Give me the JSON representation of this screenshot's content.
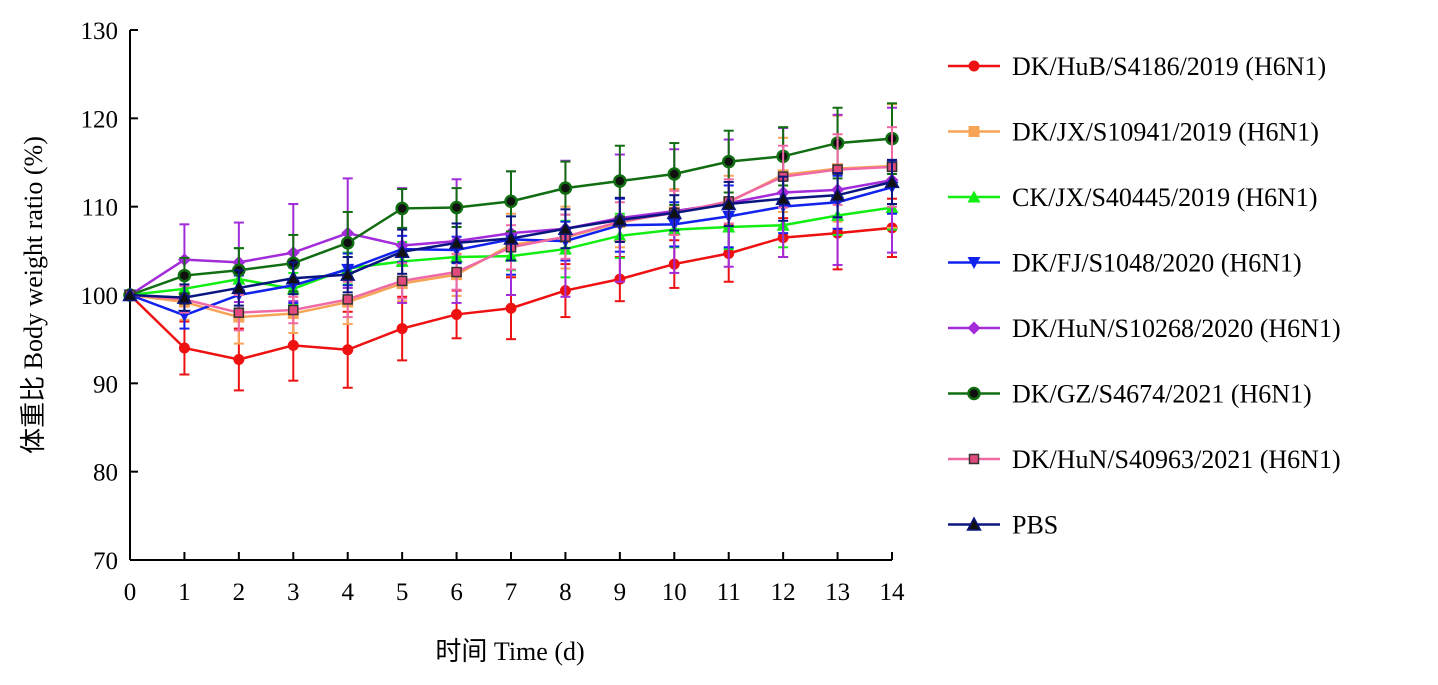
{
  "chart_data": {
    "type": "line",
    "xlabel": "时间 Time (d)",
    "ylabel": "体重比 Body weight ratio (%)",
    "xlim": [
      0,
      14
    ],
    "ylim": [
      70,
      130
    ],
    "x_ticks": [
      "0",
      "1",
      "2",
      "3",
      "4",
      "5",
      "6",
      "7",
      "8",
      "9",
      "10",
      "11",
      "12",
      "13",
      "14"
    ],
    "y_ticks": [
      "70",
      "80",
      "90",
      "100",
      "110",
      "120",
      "130"
    ],
    "grid": false,
    "legend_position": "right",
    "x": [
      0,
      1,
      2,
      3,
      4,
      5,
      6,
      7,
      8,
      9,
      10,
      11,
      12,
      13,
      14
    ],
    "series": [
      {
        "name": "DK/HuB/S4186/2019 (H6N1)",
        "color": "#ee1111",
        "marker": "circle",
        "values": [
          100,
          94,
          92.7,
          94.3,
          93.8,
          96.2,
          97.8,
          98.5,
          100.5,
          101.8,
          103.5,
          104.7,
          106.5,
          107,
          107.6
        ],
        "errors": [
          0,
          3,
          3.5,
          4,
          4.3,
          3.6,
          2.7,
          3.5,
          3,
          2.5,
          2.7,
          3.2,
          2.2,
          4.1,
          3.3
        ]
      },
      {
        "name": "DK/JX/S10941/2019 (H6N1)",
        "color": "#f7a456",
        "marker": "square",
        "values": [
          100,
          99.2,
          97.5,
          97.9,
          99.2,
          101.3,
          102.3,
          105.7,
          106.5,
          108.2,
          109.4,
          110.5,
          113.6,
          114.3,
          114.6
        ],
        "errors": [
          0,
          2,
          3,
          2.2,
          2.5,
          2,
          2.4,
          3.5,
          3.5,
          2.8,
          2.6,
          3,
          4.2,
          6,
          7
        ]
      },
      {
        "name": "CK/JX/S40445/2019 (H6N1)",
        "color": "#11ee11",
        "marker": "triangle-up",
        "values": [
          100,
          100.7,
          101.8,
          100.7,
          103,
          103.8,
          104.3,
          104.4,
          105.2,
          106.7,
          107.4,
          107.7,
          107.9,
          109,
          109.9
        ],
        "errors": [
          0,
          1.5,
          3.5,
          1.8,
          1.8,
          2.2,
          1.6,
          1.6,
          3.2,
          2.5,
          2,
          2.5,
          2.5,
          2.2,
          2.5
        ]
      },
      {
        "name": "DK/FJ/S1048/2020 (H6N1)",
        "color": "#1122ee",
        "marker": "triangle-down",
        "values": [
          100,
          97.7,
          100,
          101.1,
          102.9,
          105.2,
          105.1,
          106.3,
          106.1,
          107.9,
          108,
          108.9,
          110,
          110.5,
          112.2
        ],
        "errors": [
          0,
          1.5,
          2.2,
          2,
          1.8,
          1.5,
          1.5,
          4,
          2.2,
          3,
          2.5,
          3.5,
          3,
          3,
          3
        ]
      },
      {
        "name": "DK/HuN/S10268/2020 (H6N1)",
        "color": "#a32bd9",
        "marker": "diamond",
        "values": [
          100,
          104,
          103.7,
          104.8,
          107,
          105.6,
          106.1,
          107,
          107.5,
          108.7,
          109.5,
          110.4,
          111.6,
          111.9,
          113
        ],
        "errors": [
          0,
          4,
          4.5,
          5.5,
          6.2,
          6.5,
          7,
          7,
          7.7,
          7.2,
          7,
          7.2,
          7.3,
          8.5,
          8.2
        ]
      },
      {
        "name": "DK/GZ/S4674/2021 (H6N1)",
        "color": "#116d11",
        "marker": "circle-dark",
        "values": [
          100,
          102.2,
          102.8,
          103.6,
          105.9,
          109.8,
          109.9,
          110.6,
          112.1,
          112.9,
          113.7,
          115.1,
          115.7,
          117.2,
          117.7
        ],
        "errors": [
          0,
          2,
          2.5,
          3.2,
          3.5,
          2.2,
          2.2,
          3.4,
          3,
          4,
          3.5,
          3.5,
          3.3,
          4,
          4
        ]
      },
      {
        "name": "DK/HuN/S40963/2021 (H6N1)",
        "color": "#ef6aa5",
        "marker": "square-open",
        "values": [
          100,
          99.5,
          98,
          98.3,
          99.5,
          101.6,
          102.6,
          105.4,
          106.6,
          108.3,
          109.3,
          110.6,
          113.4,
          114.2,
          114.5
        ],
        "errors": [
          0,
          1.5,
          2,
          1.5,
          2,
          2,
          2,
          2.5,
          2.5,
          2.2,
          2.5,
          2.5,
          3.5,
          4,
          4.5
        ]
      },
      {
        "name": "PBS",
        "color": "#0a1680",
        "marker": "triangle-up-dark",
        "values": [
          100,
          99.7,
          100.8,
          101.9,
          102.3,
          104.9,
          105.9,
          106.4,
          107.5,
          108.5,
          109.3,
          110.3,
          110.9,
          111.3,
          112.8
        ],
        "errors": [
          0,
          1.5,
          2,
          1.8,
          2,
          2.5,
          2.2,
          2.5,
          2.2,
          2.5,
          2,
          2.5,
          2.5,
          2.5,
          2.5
        ]
      }
    ]
  }
}
